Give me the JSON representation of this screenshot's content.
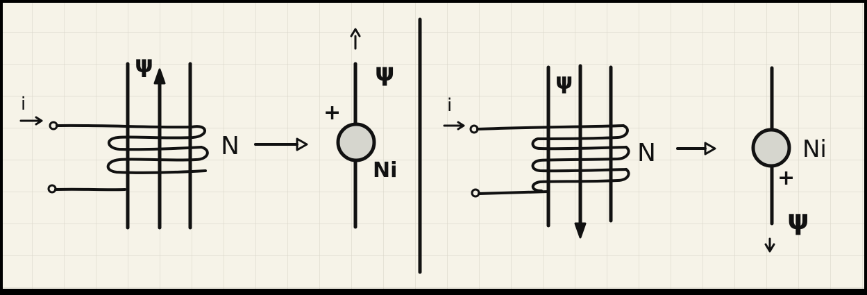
{
  "colors": {
    "paper": "#f6f3e8",
    "grid": "#d9d6ca",
    "ink": "#111111",
    "source_fill": "#d6d6ce"
  },
  "left": {
    "current_label": "i",
    "flux_label": "ψ",
    "turns_label": "N",
    "plus_label": "+",
    "source_label": "Ni",
    "source_flux_label": "ψ"
  },
  "right": {
    "current_label": "i",
    "flux_label": "ψ",
    "turns_label": "N",
    "plus_label": "+",
    "source_label": "Ni",
    "source_flux_label": "ψ"
  }
}
